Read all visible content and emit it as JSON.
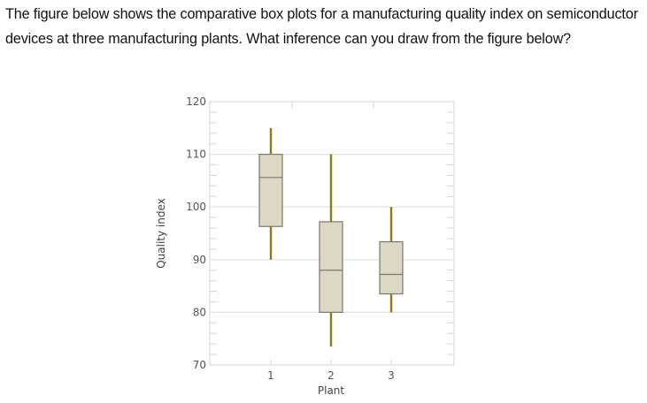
{
  "question": {
    "text": "The figure below shows the comparative box plots for a manufacturing quality index on semiconductor devices at three manufacturing plants. What inference can you draw from the figure below?"
  },
  "chart_data": {
    "type": "box",
    "title": "",
    "xlabel": "Plant",
    "ylabel": "Quality index",
    "categories": [
      "1",
      "2",
      "3"
    ],
    "ylim": [
      70,
      120
    ],
    "yticks": [
      70,
      80,
      90,
      100,
      110,
      120
    ],
    "minor_tick_step": 2,
    "grid": true,
    "legend": null,
    "series": [
      {
        "name": "1",
        "whisker_low": 90,
        "q1": 96.3,
        "median": 105.6,
        "q3": 110,
        "whisker_high": 115
      },
      {
        "name": "2",
        "whisker_low": 73.5,
        "q1": 80,
        "median": 88,
        "q3": 97.2,
        "whisker_high": 110
      },
      {
        "name": "3",
        "whisker_low": 80,
        "q1": 83.5,
        "median": 87.2,
        "q3": 93.4,
        "whisker_high": 100
      }
    ],
    "colors": {
      "box_fill": "#ddd8c6",
      "box_stroke": "#7a776c",
      "whisker": "#8b7a12",
      "grid": "#e2e2e2",
      "frame": "#dcdcdc"
    }
  }
}
